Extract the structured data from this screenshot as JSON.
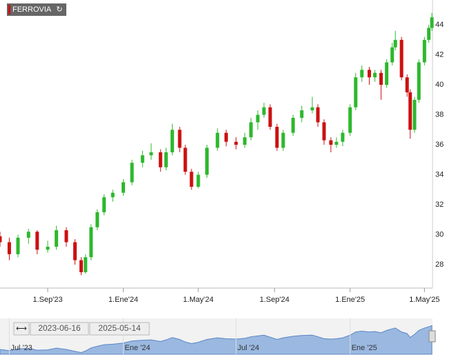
{
  "chart_data": {
    "type": "candlestick",
    "title": "FERROVIA",
    "up_color": "#2db82d",
    "down_color": "#cc1111",
    "grid": false,
    "xlim": [
      "2023-06-16",
      "2025-05-14"
    ],
    "xticks": [
      {
        "value": "2023-09-01",
        "label": "1.Sep'23"
      },
      {
        "value": "2024-01-01",
        "label": "1.Ene'24"
      },
      {
        "value": "2024-05-01",
        "label": "1.May'24"
      },
      {
        "value": "2024-09-01",
        "label": "1.Sep'24"
      },
      {
        "value": "2025-01-01",
        "label": "1.Ene'25"
      },
      {
        "value": "2025-05-01",
        "label": "1.May'25"
      }
    ],
    "ylim": [
      26.44,
      45.66
    ],
    "yticks": [
      28,
      30,
      32,
      34,
      36,
      38,
      40,
      42,
      44
    ],
    "x": [
      "2023-06-16",
      "2023-07-01",
      "2023-07-15",
      "2023-08-01",
      "2023-08-15",
      "2023-09-01",
      "2023-09-15",
      "2023-10-01",
      "2023-10-15",
      "2023-10-25",
      "2023-11-01",
      "2023-11-10",
      "2023-11-20",
      "2023-12-01",
      "2023-12-15",
      "2024-01-01",
      "2024-01-15",
      "2024-02-01",
      "2024-02-15",
      "2024-03-01",
      "2024-03-10",
      "2024-03-20",
      "2024-04-01",
      "2024-04-10",
      "2024-04-20",
      "2024-05-01",
      "2024-05-15",
      "2024-06-01",
      "2024-06-15",
      "2024-07-01",
      "2024-07-15",
      "2024-07-25",
      "2024-08-05",
      "2024-08-15",
      "2024-08-25",
      "2024-09-05",
      "2024-09-15",
      "2024-10-01",
      "2024-10-15",
      "2024-11-01",
      "2024-11-10",
      "2024-11-20",
      "2024-12-01",
      "2024-12-10",
      "2024-12-20",
      "2025-01-01",
      "2025-01-10",
      "2025-01-20",
      "2025-02-01",
      "2025-02-10",
      "2025-02-20",
      "2025-03-01",
      "2025-03-10",
      "2025-03-15",
      "2025-03-25",
      "2025-04-03",
      "2025-04-08",
      "2025-04-15",
      "2025-04-22",
      "2025-05-01",
      "2025-05-08",
      "2025-05-13"
    ],
    "open": [
      29.9,
      29.5,
      28.7,
      29.8,
      30.2,
      29.0,
      29.2,
      30.3,
      29.5,
      28.3,
      27.5,
      28.5,
      30.5,
      31.5,
      32.5,
      32.8,
      33.5,
      34.8,
      35.3,
      35.5,
      34.5,
      35.5,
      37.0,
      35.8,
      34.2,
      33.2,
      34.0,
      35.8,
      36.8,
      36.2,
      36.0,
      36.5,
      37.5,
      38.0,
      38.5,
      37.2,
      35.8,
      36.8,
      37.8,
      38.3,
      38.5,
      37.5,
      36.3,
      36.0,
      36.2,
      36.8,
      38.5,
      40.5,
      41.0,
      40.5,
      40.8,
      40.0,
      41.5,
      42.5,
      43.0,
      40.5,
      39.5,
      37.0,
      39.0,
      41.5,
      43.0,
      43.8
    ],
    "high": [
      30.2,
      29.8,
      30.0,
      30.4,
      30.3,
      29.6,
      30.6,
      30.5,
      29.7,
      28.5,
      28.7,
      30.7,
      31.7,
      32.7,
      33.0,
      33.7,
      35.0,
      35.6,
      36.1,
      35.7,
      35.8,
      37.4,
      37.2,
      36.0,
      34.4,
      34.2,
      36.0,
      37.1,
      37.0,
      36.5,
      36.8,
      37.8,
      38.3,
      38.8,
      38.7,
      37.4,
      37.0,
      38.0,
      38.6,
      39.2,
      38.7,
      37.7,
      36.5,
      36.5,
      37.0,
      38.7,
      40.8,
      41.3,
      41.2,
      41.0,
      41.0,
      41.7,
      42.8,
      43.6,
      43.2,
      40.7,
      39.7,
      39.2,
      41.7,
      43.2,
      44.0,
      44.8
    ],
    "low": [
      29.2,
      28.3,
      28.5,
      29.4,
      28.7,
      28.8,
      29.0,
      29.2,
      28.0,
      27.3,
      27.4,
      28.3,
      30.3,
      31.3,
      32.2,
      32.6,
      33.3,
      34.5,
      35.0,
      34.2,
      34.3,
      35.3,
      35.5,
      34.0,
      33.0,
      33.1,
      33.8,
      35.6,
      35.9,
      35.7,
      35.8,
      36.3,
      37.0,
      37.8,
      37.0,
      35.6,
      35.6,
      36.6,
      37.5,
      38.1,
      37.2,
      36.0,
      35.5,
      35.8,
      35.9,
      36.6,
      38.3,
      40.2,
      40.0,
      40.2,
      39.0,
      39.8,
      41.3,
      42.3,
      40.3,
      39.2,
      36.4,
      36.8,
      38.8,
      41.3,
      42.8,
      43.6
    ],
    "close": [
      29.5,
      28.7,
      29.8,
      30.2,
      29.0,
      29.2,
      30.3,
      29.5,
      28.3,
      27.5,
      28.5,
      30.5,
      31.5,
      32.5,
      32.8,
      33.5,
      34.8,
      35.3,
      35.5,
      34.5,
      35.5,
      37.0,
      35.8,
      34.2,
      33.2,
      34.0,
      35.8,
      36.8,
      36.2,
      36.0,
      36.5,
      37.5,
      38.0,
      38.5,
      37.2,
      35.8,
      36.8,
      37.8,
      38.3,
      38.5,
      37.5,
      36.3,
      36.0,
      36.2,
      36.8,
      38.5,
      40.5,
      41.0,
      40.5,
      40.8,
      40.0,
      41.5,
      42.5,
      43.0,
      40.5,
      39.5,
      37.0,
      39.0,
      41.5,
      43.0,
      43.8,
      44.5
    ],
    "navigator": {
      "color": "#9ab8e0",
      "xticks": [
        {
          "value": "2023-07-01",
          "label": "Jul '23"
        },
        {
          "value": "2024-01-01",
          "label": "Ene '24"
        },
        {
          "value": "2024-07-01",
          "label": "Jul '24"
        },
        {
          "value": "2025-01-01",
          "label": "Ene '25"
        }
      ]
    }
  }
}
